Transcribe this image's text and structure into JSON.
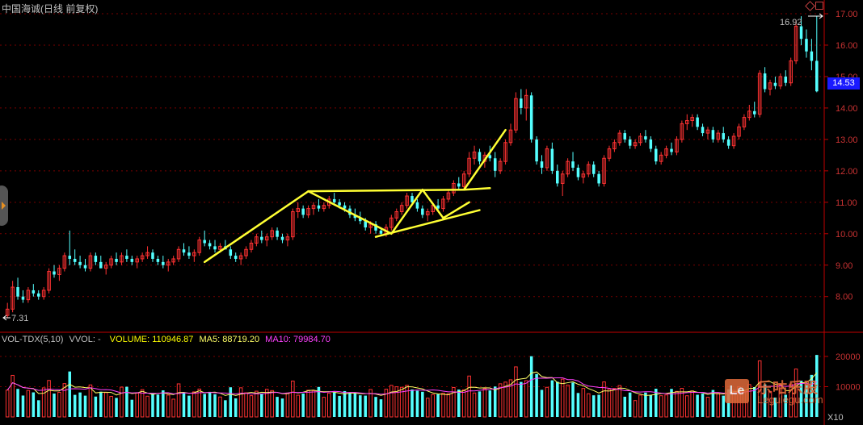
{
  "header": {
    "title": "中国海诚(日线 前复权)",
    "title_color": "#c0c0c0"
  },
  "annotations": {
    "high_label": "16.92",
    "low_label": "7.31",
    "last_price": "14.53",
    "last_price_bg": "#1a1aff"
  },
  "volume_header": {
    "indicator": "VOL-TDX(5,10)",
    "vvol": "VVOL: -",
    "volume": "VOLUME: 110946.87",
    "ma5": "MA5: 88719.20",
    "ma10": "MA10: 79984.70",
    "colors": {
      "indicator": "#c0c0c0",
      "volume": "#ffff00",
      "ma5": "#ffff66",
      "ma10": "#ff40ff"
    }
  },
  "watermark": {
    "brand": "乐咕乐股",
    "url": "Legulegu.com",
    "logo_text": "Le"
  },
  "unit_label": "X10",
  "colors": {
    "up": "#ff3232",
    "down": "#54ffff",
    "axis": "#c00000",
    "trend": "#ffff33",
    "grid": "#7a0000"
  },
  "chart_data": [
    {
      "type": "candlestick",
      "title": "中国海诚(日线 前复权)",
      "ylim": [
        7.31,
        17.0
      ],
      "y_ticks": [
        "17.00",
        "16.00",
        "15.00",
        "14.00",
        "13.00",
        "12.00",
        "11.00",
        "10.00",
        "9.00",
        "8.00"
      ],
      "grid": true,
      "legend": "none",
      "high": 16.92,
      "low": 7.31,
      "last": 14.53,
      "ohlc": [
        [
          7.4,
          7.8,
          7.31,
          7.6
        ],
        [
          7.6,
          8.5,
          7.5,
          8.3
        ],
        [
          8.3,
          8.6,
          7.9,
          8.0
        ],
        [
          8.0,
          8.2,
          7.8,
          7.9
        ],
        [
          7.9,
          8.3,
          7.8,
          8.2
        ],
        [
          8.2,
          8.4,
          8.0,
          8.1
        ],
        [
          8.1,
          8.2,
          7.9,
          8.0
        ],
        [
          8.0,
          8.3,
          7.9,
          8.2
        ],
        [
          8.2,
          8.9,
          8.1,
          8.8
        ],
        [
          8.8,
          9.0,
          8.6,
          8.7
        ],
        [
          8.7,
          9.0,
          8.5,
          8.9
        ],
        [
          8.9,
          9.4,
          8.8,
          9.3
        ],
        [
          9.3,
          10.1,
          9.0,
          9.2
        ],
        [
          9.2,
          9.5,
          9.0,
          9.1
        ],
        [
          9.1,
          9.3,
          8.9,
          9.0
        ],
        [
          9.0,
          9.2,
          8.8,
          8.9
        ],
        [
          8.9,
          9.4,
          8.8,
          9.3
        ],
        [
          9.3,
          9.4,
          9.0,
          9.1
        ],
        [
          9.1,
          9.3,
          8.9,
          8.9
        ],
        [
          8.9,
          9.1,
          8.7,
          9.0
        ],
        [
          9.0,
          9.3,
          8.9,
          9.2
        ],
        [
          9.2,
          9.4,
          9.0,
          9.1
        ],
        [
          9.1,
          9.4,
          9.0,
          9.3
        ],
        [
          9.3,
          9.5,
          9.1,
          9.2
        ],
        [
          9.2,
          9.3,
          9.0,
          9.1
        ],
        [
          9.1,
          9.3,
          8.9,
          9.2
        ],
        [
          9.2,
          9.4,
          9.1,
          9.3
        ],
        [
          9.3,
          9.6,
          9.2,
          9.4
        ],
        [
          9.4,
          9.5,
          9.1,
          9.2
        ],
        [
          9.2,
          9.3,
          9.0,
          9.1
        ],
        [
          9.1,
          9.3,
          8.9,
          9.0
        ],
        [
          9.0,
          9.2,
          8.8,
          9.1
        ],
        [
          9.1,
          9.3,
          9.0,
          9.2
        ],
        [
          9.2,
          9.6,
          9.1,
          9.5
        ],
        [
          9.5,
          9.7,
          9.3,
          9.4
        ],
        [
          9.4,
          9.6,
          9.2,
          9.3
        ],
        [
          9.3,
          9.5,
          9.1,
          9.4
        ],
        [
          9.4,
          9.9,
          9.3,
          9.8
        ],
        [
          9.8,
          10.1,
          9.6,
          9.7
        ],
        [
          9.7,
          9.8,
          9.5,
          9.6
        ],
        [
          9.6,
          9.8,
          9.4,
          9.5
        ],
        [
          9.5,
          9.7,
          9.4,
          9.6
        ],
        [
          9.6,
          9.8,
          9.5,
          9.5
        ],
        [
          9.5,
          9.6,
          9.2,
          9.3
        ],
        [
          9.3,
          9.4,
          9.1,
          9.2
        ],
        [
          9.2,
          9.4,
          9.0,
          9.3
        ],
        [
          9.3,
          9.6,
          9.2,
          9.5
        ],
        [
          9.5,
          9.8,
          9.4,
          9.7
        ],
        [
          9.7,
          10.0,
          9.6,
          9.9
        ],
        [
          9.9,
          10.1,
          9.7,
          9.8
        ],
        [
          9.8,
          10.0,
          9.6,
          9.9
        ],
        [
          9.9,
          10.2,
          9.8,
          10.1
        ],
        [
          10.1,
          10.2,
          9.8,
          9.9
        ],
        [
          9.9,
          10.0,
          9.7,
          9.8
        ],
        [
          9.8,
          10.0,
          9.6,
          9.9
        ],
        [
          9.9,
          10.8,
          9.8,
          10.7
        ],
        [
          10.7,
          11.0,
          10.5,
          10.8
        ],
        [
          10.8,
          10.9,
          10.5,
          10.6
        ],
        [
          10.6,
          10.9,
          10.5,
          10.8
        ],
        [
          10.8,
          11.0,
          10.6,
          10.9
        ],
        [
          10.9,
          11.1,
          10.7,
          10.8
        ],
        [
          10.8,
          11.0,
          10.7,
          10.9
        ],
        [
          10.9,
          11.2,
          10.8,
          11.1
        ],
        [
          11.1,
          11.3,
          10.9,
          11.0
        ],
        [
          11.0,
          11.1,
          10.8,
          10.9
        ],
        [
          10.9,
          11.0,
          10.7,
          10.8
        ],
        [
          10.8,
          10.9,
          10.5,
          10.6
        ],
        [
          10.6,
          10.8,
          10.4,
          10.5
        ],
        [
          10.5,
          10.7,
          10.3,
          10.4
        ],
        [
          10.4,
          10.5,
          10.1,
          10.2
        ],
        [
          10.2,
          10.4,
          10.0,
          10.3
        ],
        [
          10.3,
          10.4,
          10.0,
          10.1
        ],
        [
          10.1,
          10.2,
          9.95,
          10.0
        ],
        [
          10.0,
          10.3,
          9.9,
          10.2
        ],
        [
          10.2,
          10.6,
          10.1,
          10.5
        ],
        [
          10.5,
          10.8,
          10.4,
          10.7
        ],
        [
          10.7,
          11.0,
          10.6,
          10.9
        ],
        [
          10.9,
          11.3,
          10.8,
          11.2
        ],
        [
          11.2,
          11.3,
          10.9,
          11.0
        ],
        [
          11.0,
          11.1,
          10.7,
          10.8
        ],
        [
          10.8,
          10.9,
          10.5,
          10.6
        ],
        [
          10.6,
          10.8,
          10.4,
          10.7
        ],
        [
          10.7,
          11.0,
          10.6,
          10.9
        ],
        [
          10.9,
          11.1,
          10.7,
          10.8
        ],
        [
          10.8,
          11.2,
          10.7,
          11.1
        ],
        [
          11.1,
          11.4,
          11.0,
          11.3
        ],
        [
          11.3,
          11.7,
          11.2,
          11.6
        ],
        [
          11.6,
          11.8,
          11.4,
          11.5
        ],
        [
          11.5,
          12.0,
          11.4,
          11.9
        ],
        [
          11.9,
          12.6,
          11.8,
          12.4
        ],
        [
          12.4,
          12.8,
          12.2,
          12.6
        ],
        [
          12.6,
          12.7,
          12.2,
          12.3
        ],
        [
          12.3,
          12.6,
          12.1,
          12.5
        ],
        [
          12.5,
          12.8,
          12.3,
          12.4
        ],
        [
          12.4,
          12.6,
          11.8,
          12.0
        ],
        [
          12.0,
          12.4,
          11.9,
          12.3
        ],
        [
          12.3,
          13.0,
          12.2,
          12.9
        ],
        [
          12.9,
          13.5,
          12.8,
          13.3
        ],
        [
          13.3,
          14.5,
          13.2,
          14.3
        ],
        [
          14.3,
          14.6,
          13.8,
          14.0
        ],
        [
          14.0,
          14.6,
          13.6,
          14.4
        ],
        [
          14.4,
          14.5,
          12.9,
          13.0
        ],
        [
          13.0,
          13.1,
          12.2,
          12.3
        ],
        [
          12.3,
          12.5,
          11.9,
          12.1
        ],
        [
          12.1,
          12.8,
          12.0,
          12.7
        ],
        [
          12.7,
          12.9,
          11.9,
          12.0
        ],
        [
          12.0,
          12.2,
          11.5,
          11.6
        ],
        [
          11.6,
          12.0,
          11.2,
          11.9
        ],
        [
          11.9,
          12.4,
          11.8,
          12.3
        ],
        [
          12.3,
          12.6,
          12.0,
          12.1
        ],
        [
          12.1,
          12.2,
          11.7,
          11.8
        ],
        [
          11.8,
          12.0,
          11.6,
          11.9
        ],
        [
          11.9,
          12.3,
          11.8,
          12.2
        ],
        [
          12.2,
          12.3,
          11.8,
          11.9
        ],
        [
          11.9,
          12.0,
          11.5,
          11.6
        ],
        [
          11.6,
          12.5,
          11.5,
          12.4
        ],
        [
          12.4,
          12.8,
          12.3,
          12.7
        ],
        [
          12.7,
          13.0,
          12.6,
          12.9
        ],
        [
          12.9,
          13.3,
          12.8,
          13.2
        ],
        [
          13.2,
          13.3,
          12.9,
          13.0
        ],
        [
          13.0,
          13.1,
          12.7,
          12.8
        ],
        [
          12.8,
          13.0,
          12.7,
          12.9
        ],
        [
          12.9,
          13.2,
          12.8,
          13.1
        ],
        [
          13.1,
          13.3,
          12.9,
          13.0
        ],
        [
          13.0,
          13.1,
          12.6,
          12.7
        ],
        [
          12.7,
          12.8,
          12.2,
          12.3
        ],
        [
          12.3,
          12.6,
          12.2,
          12.5
        ],
        [
          12.5,
          12.8,
          12.4,
          12.7
        ],
        [
          12.7,
          12.9,
          12.5,
          12.6
        ],
        [
          12.6,
          13.1,
          12.5,
          13.0
        ],
        [
          13.0,
          13.6,
          12.9,
          13.5
        ],
        [
          13.5,
          13.8,
          13.3,
          13.6
        ],
        [
          13.6,
          13.8,
          13.4,
          13.7
        ],
        [
          13.7,
          13.8,
          13.3,
          13.4
        ],
        [
          13.4,
          13.5,
          13.1,
          13.2
        ],
        [
          13.2,
          13.4,
          13.0,
          13.3
        ],
        [
          13.3,
          13.4,
          12.9,
          13.0
        ],
        [
          13.0,
          13.3,
          12.9,
          13.2
        ],
        [
          13.2,
          13.4,
          12.9,
          13.0
        ],
        [
          13.0,
          13.1,
          12.7,
          12.8
        ],
        [
          12.8,
          13.2,
          12.7,
          13.1
        ],
        [
          13.1,
          13.5,
          13.0,
          13.4
        ],
        [
          13.4,
          13.8,
          13.3,
          13.7
        ],
        [
          13.7,
          14.1,
          13.6,
          13.9
        ],
        [
          13.9,
          14.2,
          13.7,
          13.8
        ],
        [
          13.8,
          15.2,
          13.7,
          15.1
        ],
        [
          15.1,
          15.3,
          14.5,
          14.6
        ],
        [
          14.6,
          14.9,
          14.4,
          14.8
        ],
        [
          14.8,
          15.0,
          14.6,
          14.7
        ],
        [
          14.7,
          15.1,
          14.6,
          15.0
        ],
        [
          15.0,
          15.2,
          14.7,
          14.8
        ],
        [
          14.8,
          15.6,
          14.7,
          15.5
        ],
        [
          15.5,
          16.8,
          15.4,
          16.6
        ],
        [
          16.6,
          16.92,
          16.0,
          16.2
        ],
        [
          16.2,
          16.5,
          15.6,
          15.8
        ],
        [
          15.8,
          16.2,
          15.2,
          15.5
        ],
        [
          15.5,
          16.92,
          14.5,
          14.53
        ]
      ]
    },
    {
      "type": "bar",
      "title": "VOL-TDX(5,10)",
      "ylim": [
        0,
        22000
      ],
      "y_ticks": [
        "20000",
        "10000"
      ],
      "unit": "X10",
      "volume": 110946.87,
      "ma5": 88719.2,
      "ma10": 79984.7
    }
  ]
}
